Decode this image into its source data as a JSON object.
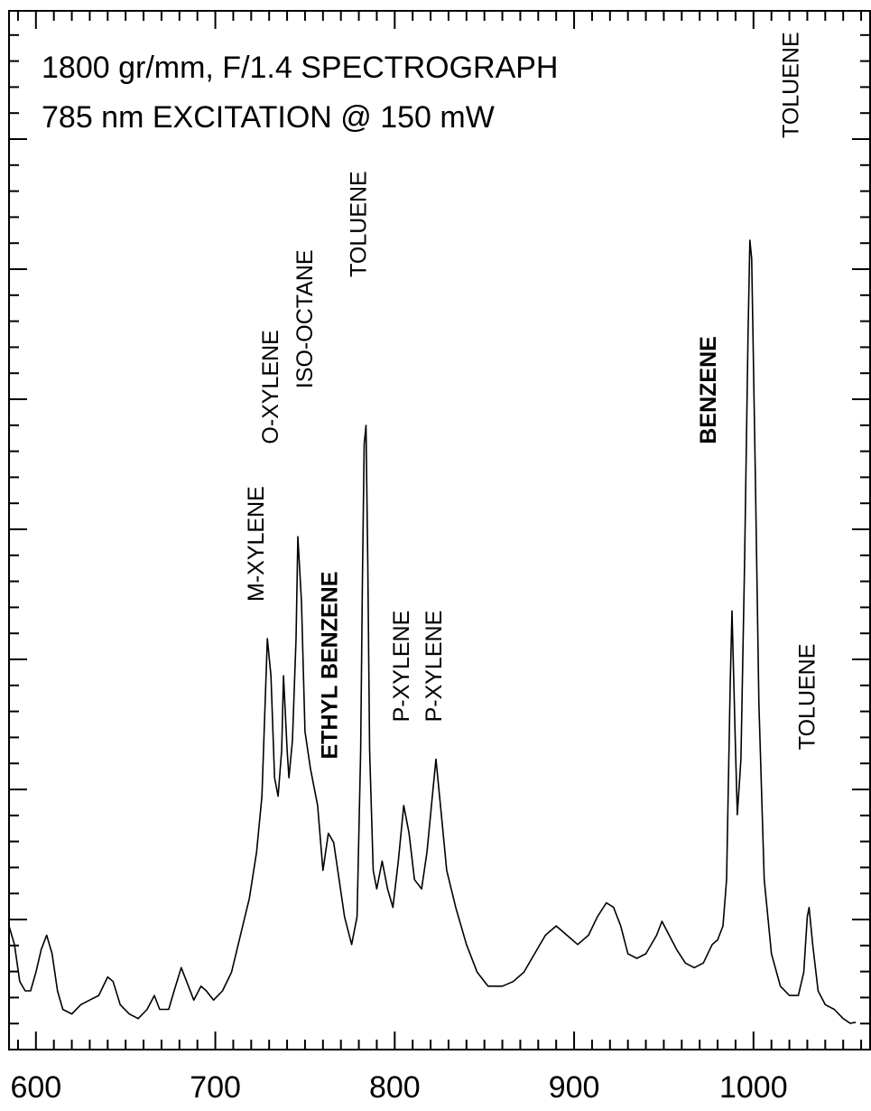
{
  "chart_data": {
    "type": "line",
    "title_lines": [
      "1800 gr/mm, F/1.4 SPECTROGRAPH",
      "785 nm EXCITATION @ 150 mW"
    ],
    "xlabel": "",
    "ylabel": "",
    "xlim": [
      585,
      1065
    ],
    "ylim": [
      0,
      1
    ],
    "x_ticks": [
      600,
      700,
      800,
      900,
      1000
    ],
    "grid": false,
    "legend": "none",
    "line_color": "#000000",
    "series": [
      {
        "points": [
          [
            585,
            0.11
          ],
          [
            588,
            0.09
          ],
          [
            591,
            0.05
          ],
          [
            594,
            0.04
          ],
          [
            597,
            0.04
          ],
          [
            600,
            0.06
          ],
          [
            603,
            0.085
          ],
          [
            606,
            0.1
          ],
          [
            609,
            0.08
          ],
          [
            612,
            0.04
          ],
          [
            615,
            0.02
          ],
          [
            620,
            0.015
          ],
          [
            625,
            0.025
          ],
          [
            630,
            0.03
          ],
          [
            635,
            0.035
          ],
          [
            640,
            0.055
          ],
          [
            643,
            0.05
          ],
          [
            647,
            0.025
          ],
          [
            652,
            0.015
          ],
          [
            657,
            0.01
          ],
          [
            662,
            0.02
          ],
          [
            666,
            0.035
          ],
          [
            669,
            0.02
          ],
          [
            674,
            0.02
          ],
          [
            677,
            0.04
          ],
          [
            681,
            0.065
          ],
          [
            684,
            0.05
          ],
          [
            688,
            0.03
          ],
          [
            692,
            0.045
          ],
          [
            695,
            0.04
          ],
          [
            699,
            0.03
          ],
          [
            704,
            0.04
          ],
          [
            709,
            0.06
          ],
          [
            714,
            0.1
          ],
          [
            719,
            0.14
          ],
          [
            723,
            0.19
          ],
          [
            726,
            0.25
          ],
          [
            729,
            0.42
          ],
          [
            731,
            0.38
          ],
          [
            733,
            0.27
          ],
          [
            735,
            0.25
          ],
          [
            737,
            0.3
          ],
          [
            738,
            0.38
          ],
          [
            740,
            0.3
          ],
          [
            741,
            0.27
          ],
          [
            743,
            0.31
          ],
          [
            745,
            0.42
          ],
          [
            746,
            0.53
          ],
          [
            748,
            0.46
          ],
          [
            750,
            0.32
          ],
          [
            753,
            0.28
          ],
          [
            757,
            0.24
          ],
          [
            760,
            0.17
          ],
          [
            763,
            0.21
          ],
          [
            766,
            0.2
          ],
          [
            769,
            0.16
          ],
          [
            772,
            0.12
          ],
          [
            776,
            0.09
          ],
          [
            779,
            0.12
          ],
          [
            781,
            0.3
          ],
          [
            782,
            0.48
          ],
          [
            783,
            0.63
          ],
          [
            784,
            0.65
          ],
          [
            785,
            0.5
          ],
          [
            786,
            0.3
          ],
          [
            788,
            0.17
          ],
          [
            790,
            0.15
          ],
          [
            793,
            0.18
          ],
          [
            796,
            0.15
          ],
          [
            799,
            0.13
          ],
          [
            802,
            0.18
          ],
          [
            805,
            0.24
          ],
          [
            808,
            0.21
          ],
          [
            811,
            0.16
          ],
          [
            815,
            0.15
          ],
          [
            818,
            0.19
          ],
          [
            821,
            0.25
          ],
          [
            823,
            0.29
          ],
          [
            826,
            0.23
          ],
          [
            829,
            0.17
          ],
          [
            834,
            0.13
          ],
          [
            840,
            0.09
          ],
          [
            846,
            0.06
          ],
          [
            852,
            0.045
          ],
          [
            860,
            0.045
          ],
          [
            866,
            0.05
          ],
          [
            872,
            0.06
          ],
          [
            878,
            0.08
          ],
          [
            884,
            0.1
          ],
          [
            890,
            0.11
          ],
          [
            896,
            0.1
          ],
          [
            902,
            0.09
          ],
          [
            908,
            0.1
          ],
          [
            913,
            0.12
          ],
          [
            918,
            0.135
          ],
          [
            922,
            0.13
          ],
          [
            926,
            0.11
          ],
          [
            930,
            0.08
          ],
          [
            935,
            0.075
          ],
          [
            940,
            0.08
          ],
          [
            946,
            0.1
          ],
          [
            949,
            0.115
          ],
          [
            953,
            0.1
          ],
          [
            957,
            0.085
          ],
          [
            962,
            0.07
          ],
          [
            967,
            0.065
          ],
          [
            972,
            0.07
          ],
          [
            977,
            0.09
          ],
          [
            980,
            0.095
          ],
          [
            983,
            0.11
          ],
          [
            985,
            0.16
          ],
          [
            987,
            0.37
          ],
          [
            988,
            0.45
          ],
          [
            990,
            0.3
          ],
          [
            991,
            0.23
          ],
          [
            993,
            0.29
          ],
          [
            995,
            0.5
          ],
          [
            997,
            0.75
          ],
          [
            998,
            0.85
          ],
          [
            999,
            0.83
          ],
          [
            1001,
            0.6
          ],
          [
            1003,
            0.35
          ],
          [
            1006,
            0.16
          ],
          [
            1010,
            0.08
          ],
          [
            1015,
            0.045
          ],
          [
            1020,
            0.035
          ],
          [
            1025,
            0.035
          ],
          [
            1028,
            0.06
          ],
          [
            1030,
            0.12
          ],
          [
            1031,
            0.13
          ],
          [
            1033,
            0.09
          ],
          [
            1036,
            0.04
          ],
          [
            1040,
            0.025
          ],
          [
            1045,
            0.02
          ],
          [
            1050,
            0.01
          ],
          [
            1054,
            0.005
          ],
          [
            1057,
            0.006
          ]
        ]
      }
    ],
    "annotations": [
      {
        "text": "M-XYLENE",
        "x": 727,
        "y": 0.46,
        "weight": "normal"
      },
      {
        "text": "O-XYLENE",
        "x": 735,
        "y": 0.63,
        "weight": "normal"
      },
      {
        "text": "ISO-OCTANE",
        "x": 754,
        "y": 0.69,
        "weight": "normal"
      },
      {
        "text": "ETHYL BENZENE",
        "x": 768,
        "y": 0.29,
        "weight": "bold"
      },
      {
        "text": "TOLUENE",
        "x": 784,
        "y": 0.81,
        "weight": "normal"
      },
      {
        "text": "P-XYLENE",
        "x": 808,
        "y": 0.33,
        "weight": "normal"
      },
      {
        "text": "P-XYLENE",
        "x": 826,
        "y": 0.33,
        "weight": "normal"
      },
      {
        "text": "BENZENE",
        "x": 979,
        "y": 0.63,
        "weight": "bold"
      },
      {
        "text": "TOLUENE",
        "x": 1025,
        "y": 0.96,
        "weight": "normal"
      },
      {
        "text": "TOLUENE",
        "x": 1034,
        "y": 0.3,
        "weight": "normal"
      }
    ]
  }
}
